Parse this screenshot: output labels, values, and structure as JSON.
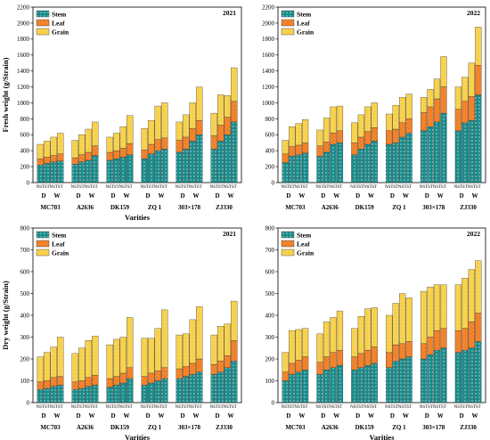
{
  "legend_labels": [
    "Stem",
    "Leaf",
    "Grain"
  ],
  "colors": {
    "stem": "#1a8c8c",
    "leaf": "#f07a1e",
    "grain": "#f7d04a"
  },
  "chart_data": [
    {
      "type": "bar",
      "stacked": true,
      "year_label": "2021",
      "ylabel": "Fresh weight (g/Strain)",
      "xlabel": "Varities",
      "ylim": [
        0,
        2200
      ],
      "yticks": [
        0,
        200,
        400,
        600,
        800,
        1000,
        1200,
        1400,
        1600,
        1800,
        2000,
        2200
      ],
      "varieties": [
        "MC703",
        "A2636",
        "DK159",
        "ZQ 1",
        "303×178",
        "ZJ330"
      ],
      "groups": [
        "D",
        "W"
      ],
      "treatments": [
        "NST",
        "ST",
        "NST",
        "ST"
      ],
      "series": [
        {
          "name": "Stem",
          "values": [
            [
              220,
              240,
              260,
              270
            ],
            [
              230,
              260,
              280,
              340
            ],
            [
              280,
              300,
              320,
              350
            ],
            [
              300,
              360,
              400,
              420
            ],
            [
              380,
              420,
              520,
              600
            ],
            [
              420,
              520,
              600,
              760
            ]
          ]
        },
        {
          "name": "Leaf",
          "values": [
            [
              80,
              80,
              80,
              90
            ],
            [
              80,
              90,
              100,
              120
            ],
            [
              100,
              100,
              110,
              140
            ],
            [
              110,
              120,
              140,
              140
            ],
            [
              150,
              150,
              160,
              180
            ],
            [
              170,
              200,
              220,
              260
            ]
          ]
        },
        {
          "name": "Grain",
          "values": [
            [
              180,
              200,
              230,
              260
            ],
            [
              220,
              250,
              290,
              300
            ],
            [
              190,
              220,
              270,
              350
            ],
            [
              270,
              300,
              420,
              440
            ],
            [
              230,
              280,
              320,
              420
            ],
            [
              280,
              380,
              270,
              420
            ]
          ]
        }
      ]
    },
    {
      "type": "bar",
      "stacked": true,
      "year_label": "2022",
      "ylabel": "",
      "xlabel": "",
      "ylim": [
        0,
        2200
      ],
      "yticks": [
        0,
        200,
        400,
        600,
        800,
        1000,
        1200,
        1400,
        1600,
        1800,
        2000,
        2200
      ],
      "varieties": [
        "MC703",
        "A2636",
        "DK159",
        "ZQ 1",
        "303×178",
        "ZJ330"
      ],
      "groups": [
        "D",
        "W"
      ],
      "treatments": [
        "NST",
        "ST",
        "NST",
        "ST"
      ],
      "series": [
        {
          "name": "Stem",
          "values": [
            [
              250,
              330,
              350,
              370
            ],
            [
              330,
              380,
              480,
              500
            ],
            [
              350,
              420,
              480,
              520
            ],
            [
              480,
              500,
              570,
              620
            ],
            [
              650,
              700,
              760,
              870
            ],
            [
              650,
              750,
              780,
              1100
            ]
          ]
        },
        {
          "name": "Leaf",
          "values": [
            [
              110,
              120,
              120,
              130
            ],
            [
              130,
              130,
              140,
              150
            ],
            [
              150,
              150,
              160,
              170
            ],
            [
              170,
              170,
              180,
              180
            ],
            [
              230,
              250,
              290,
              330
            ],
            [
              270,
              270,
              300,
              370
            ]
          ]
        },
        {
          "name": "Grain",
          "values": [
            [
              170,
              250,
              270,
              290
            ],
            [
              200,
              300,
              330,
              310
            ],
            [
              250,
              280,
              310,
              310
            ],
            [
              210,
              300,
              320,
              310
            ],
            [
              190,
              220,
              250,
              380
            ],
            [
              280,
              300,
              420,
              480
            ]
          ]
        }
      ]
    },
    {
      "type": "bar",
      "stacked": true,
      "year_label": "2021",
      "ylabel": "Dry weight (g/Strain)",
      "xlabel": "Varities",
      "ylim": [
        0,
        800
      ],
      "yticks": [
        0,
        100,
        200,
        300,
        400,
        500,
        600,
        700,
        800
      ],
      "varieties": [
        "MC703",
        "A2636",
        "DK159",
        "ZQ 1",
        "303×178",
        "ZJ330"
      ],
      "groups": [
        "D",
        "W"
      ],
      "treatments": [
        "NST",
        "ST",
        "NST",
        "ST"
      ],
      "series": [
        {
          "name": "Stem",
          "values": [
            [
              60,
              65,
              75,
              80
            ],
            [
              60,
              65,
              75,
              80
            ],
            [
              70,
              80,
              90,
              110
            ],
            [
              80,
              90,
              100,
              110
            ],
            [
              110,
              120,
              130,
              140
            ],
            [
              130,
              140,
              160,
              190
            ]
          ]
        },
        {
          "name": "Leaf",
          "values": [
            [
              35,
              35,
              40,
              40
            ],
            [
              35,
              35,
              40,
              45
            ],
            [
              40,
              40,
              45,
              50
            ],
            [
              40,
              45,
              45,
              50
            ],
            [
              45,
              45,
              50,
              60
            ],
            [
              45,
              50,
              55,
              95
            ]
          ]
        },
        {
          "name": "Grain",
          "values": [
            [
              115,
              130,
              140,
              180
            ],
            [
              130,
              150,
              170,
              180
            ],
            [
              155,
              170,
              165,
              230
            ],
            [
              175,
              160,
              195,
              265
            ],
            [
              155,
              150,
              200,
              240
            ],
            [
              135,
              160,
              145,
              180
            ]
          ]
        }
      ]
    },
    {
      "type": "bar",
      "stacked": true,
      "year_label": "2022",
      "ylabel": "",
      "xlabel": "Varities",
      "ylim": [
        0,
        800
      ],
      "yticks": [
        0,
        100,
        200,
        300,
        400,
        500,
        600,
        700,
        800
      ],
      "varieties": [
        "MC703",
        "A2636",
        "DK159",
        "ZQ 1",
        "303×178",
        "ZJ330"
      ],
      "groups": [
        "D",
        "W"
      ],
      "treatments": [
        "NST",
        "ST",
        "NST",
        "ST"
      ],
      "series": [
        {
          "name": "Stem",
          "values": [
            [
              100,
              130,
              140,
              150
            ],
            [
              130,
              150,
              160,
              170
            ],
            [
              150,
              160,
              170,
              180
            ],
            [
              160,
              190,
              200,
              210
            ],
            [
              200,
              220,
              240,
              250
            ],
            [
              230,
              240,
              250,
              280
            ]
          ]
        },
        {
          "name": "Leaf",
          "values": [
            [
              40,
              50,
              55,
              60
            ],
            [
              55,
              60,
              70,
              70
            ],
            [
              60,
              65,
              70,
              75
            ],
            [
              70,
              75,
              70,
              70
            ],
            [
              70,
              80,
              90,
              90
            ],
            [
              100,
              100,
              120,
              130
            ]
          ]
        },
        {
          "name": "Grain",
          "values": [
            [
              90,
              150,
              140,
              130
            ],
            [
              130,
              160,
              160,
              180
            ],
            [
              130,
              170,
              190,
              180
            ],
            [
              170,
              190,
              230,
              200
            ],
            [
              240,
              230,
              210,
              200
            ],
            [
              210,
              230,
              240,
              240
            ]
          ]
        }
      ]
    }
  ]
}
